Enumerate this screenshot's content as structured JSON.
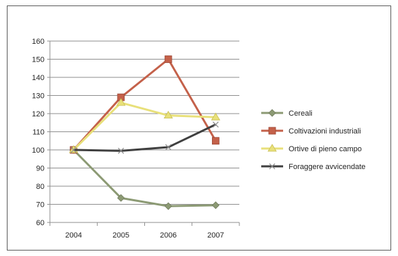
{
  "chart_data": {
    "type": "line",
    "title": "",
    "xlabel": "",
    "ylabel": "",
    "categories": [
      "2004",
      "2005",
      "2006",
      "2007"
    ],
    "ylim": [
      60,
      160
    ],
    "yticks": [
      60,
      70,
      80,
      90,
      100,
      110,
      120,
      130,
      140,
      150,
      160
    ],
    "grid": "horizontal",
    "legend_position": "right",
    "series": [
      {
        "name": "Cereali",
        "values": [
          100,
          73.5,
          69,
          69.5
        ],
        "color": "#8c9a74",
        "marker": "diamond"
      },
      {
        "name": "Coltivazioni industriali",
        "values": [
          100,
          129,
          150,
          105
        ],
        "color": "#c4614a",
        "marker": "square"
      },
      {
        "name": "Ortive di pieno campo",
        "values": [
          100,
          126,
          119,
          118
        ],
        "color": "#e8e07a",
        "marker": "triangle"
      },
      {
        "name": "Foraggere avvicendate",
        "values": [
          100,
          99.5,
          101.5,
          114
        ],
        "color": "#3f3f3f",
        "marker": "x"
      }
    ]
  }
}
